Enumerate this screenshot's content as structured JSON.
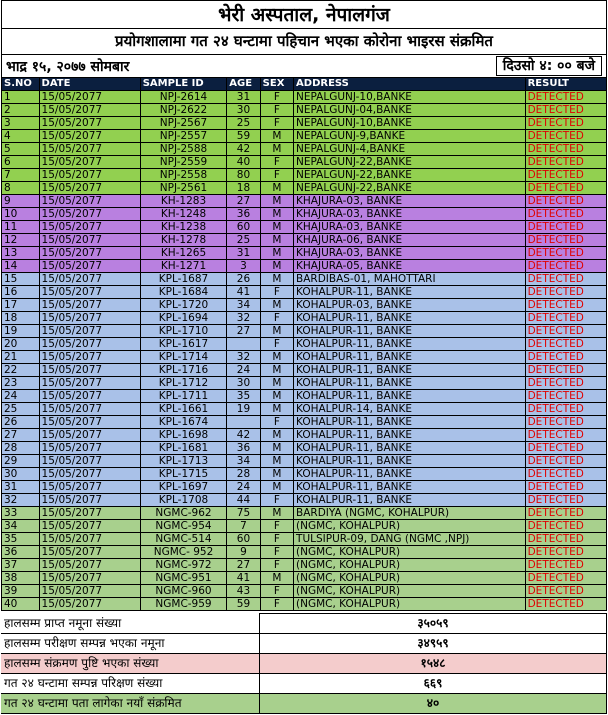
{
  "title": "भेरी अस्पताल, नेपालगंज",
  "subtitle": "प्रयोगशालामा गत २४ घन्टामा पहिचान भएका कोरोना भाइरस संक्रमित",
  "date_left": "भाद्र १५, २०७७ सोमबार",
  "date_right": "दिउसो ४: ००  बजे",
  "headers": [
    "S.NO",
    "DATE",
    "SAMPLE ID",
    "AGE",
    "SEX",
    "ADDRESS",
    "RESULT"
  ],
  "rows": [
    [
      "1",
      "15/05/2077",
      "NPJ-2614",
      "31",
      "F",
      "NEPALGUNJ-10,BANKE",
      "DETECTED",
      "g"
    ],
    [
      "2",
      "15/05/2077",
      "NPJ-2622",
      "30",
      "F",
      "NEPALGUNJ-04,BANKE",
      "DETECTED",
      "g"
    ],
    [
      "3",
      "15/05/2077",
      "NPJ-2567",
      "25",
      "F",
      "NEPALGUNJ-10,BANKE",
      "DETECTED",
      "g"
    ],
    [
      "4",
      "15/05/2077",
      "NPJ-2557",
      "59",
      "M",
      "NEPALGUNJ-9,BANKE",
      "DETECTED",
      "g"
    ],
    [
      "5",
      "15/05/2077",
      "NPJ-2588",
      "42",
      "M",
      "NEPALGUNJ-4,BANKE",
      "DETECTED",
      "g"
    ],
    [
      "6",
      "15/05/2077",
      "NPJ-2559",
      "40",
      "F",
      "NEPALGUNJ-22,BANKE",
      "DETECTED",
      "g"
    ],
    [
      "7",
      "15/05/2077",
      "NPJ-2558",
      "80",
      "F",
      "NEPALGUNJ-22,BANKE",
      "DETECTED",
      "g"
    ],
    [
      "8",
      "15/05/2077",
      "NPJ-2561",
      "18",
      "M",
      "NEPALGUNJ-22,BANKE",
      "DETECTED",
      "g"
    ],
    [
      "9",
      "15/05/2077",
      "KH-1283",
      "27",
      "M",
      "KHAJURA-03, BANKE",
      "DETECTED",
      "p"
    ],
    [
      "10",
      "15/05/2077",
      "KH-1248",
      "36",
      "M",
      "KHAJURA-03, BANKE",
      "DETECTED",
      "p"
    ],
    [
      "11",
      "15/05/2077",
      "KH-1238",
      "60",
      "M",
      "KHAJURA-03, BANKE",
      "DETECTED",
      "p"
    ],
    [
      "12",
      "15/05/2077",
      "KH-1278",
      "25",
      "M",
      "KHAJURA-06, BANKE",
      "DETECTED",
      "p"
    ],
    [
      "13",
      "15/05/2077",
      "KH-1265",
      "31",
      "M",
      "KHAJURA-03, BANKE",
      "DETECTED",
      "p"
    ],
    [
      "14",
      "15/05/2077",
      "KH-1271",
      "3",
      "M",
      "KHAJURA-05, BANKE",
      "DETECTED",
      "p"
    ],
    [
      "15",
      "15/05/2077",
      "KPL-1687",
      "26",
      "M",
      "BARDIBAS-01, MAHOTTARI",
      "DETECTED",
      "b"
    ],
    [
      "16",
      "15/05/2077",
      "KPL-1684",
      "41",
      "F",
      "KOHALPUR-11, BANKE",
      "DETECTED",
      "b"
    ],
    [
      "17",
      "15/05/2077",
      "KPL-1720",
      "34",
      "M",
      "KOHALPUR-03, BANKE",
      "DETECTED",
      "b"
    ],
    [
      "18",
      "15/05/2077",
      "KPL-1694",
      "32",
      "F",
      "KOHALPUR-11, BANKE",
      "DETECTED",
      "b"
    ],
    [
      "19",
      "15/05/2077",
      "KPL-1710",
      "27",
      "M",
      "KOHALPUR-11, BANKE",
      "DETECTED",
      "b"
    ],
    [
      "20",
      "15/05/2077",
      "KPL-1617",
      "",
      "F",
      "KOHALPUR-11, BANKE",
      "DETECTED",
      "b"
    ],
    [
      "21",
      "15/05/2077",
      "KPL-1714",
      "32",
      "M",
      "KOHALPUR-11, BANKE",
      "DETECTED",
      "b"
    ],
    [
      "22",
      "15/05/2077",
      "KPL-1716",
      "24",
      "M",
      "KOHALPUR-11, BANKE",
      "DETECTED",
      "b"
    ],
    [
      "23",
      "15/05/2077",
      "KPL-1712",
      "30",
      "M",
      "KOHALPUR-11, BANKE",
      "DETECTED",
      "b"
    ],
    [
      "24",
      "15/05/2077",
      "KPL-1711",
      "35",
      "M",
      "KOHALPUR-11, BANKE",
      "DETECTED",
      "b"
    ],
    [
      "25",
      "15/05/2077",
      "KPL-1661",
      "19",
      "M",
      "KOHALPUR-14, BANKE",
      "DETECTED",
      "b"
    ],
    [
      "26",
      "15/05/2077",
      "KPL-1674",
      "",
      "F",
      "KOHALPUR-11, BANKE",
      "DETECTED",
      "b"
    ],
    [
      "27",
      "15/05/2077",
      "KPL-1698",
      "42",
      "M",
      "KOHALPUR-11, BANKE",
      "DETECTED",
      "b"
    ],
    [
      "28",
      "15/05/2077",
      "KPL-1681",
      "36",
      "M",
      "KOHALPUR-11, BANKE",
      "DETECTED",
      "b"
    ],
    [
      "29",
      "15/05/2077",
      "KPL-1713",
      "34",
      "M",
      "KOHALPUR-11, BANKE",
      "DETECTED",
      "b"
    ],
    [
      "30",
      "15/05/2077",
      "KPL-1715",
      "28",
      "M",
      "KOHALPUR-11, BANKE",
      "DETECTED",
      "b"
    ],
    [
      "31",
      "15/05/2077",
      "KPL-1697",
      "24",
      "M",
      "KOHALPUR-11, BANKE",
      "DETECTED",
      "b"
    ],
    [
      "32",
      "15/05/2077",
      "KPL-1708",
      "44",
      "F",
      "KOHALPUR-11, BANKE",
      "DETECTED",
      "b"
    ],
    [
      "33",
      "15/05/2077",
      "NGMC-962",
      "75",
      "M",
      "BARDIYA (NGMC, KOHALPUR)",
      "DETECTED",
      "g2"
    ],
    [
      "34",
      "15/05/2077",
      "NGMC-954",
      "7",
      "F",
      "(NGMC, KOHALPUR)",
      "DETECTED",
      "g2"
    ],
    [
      "35",
      "15/05/2077",
      "NGMC-514",
      "60",
      "F",
      "TULSIPUR-09, DANG (NGMC ,NPJ)",
      "DETECTED",
      "g2"
    ],
    [
      "36",
      "15/05/2077",
      "NGMC- 952",
      "9",
      "F",
      "(NGMC, KOHALPUR)",
      "DETECTED",
      "g2"
    ],
    [
      "37",
      "15/05/2077",
      "NGMC-972",
      "27",
      "F",
      "(NGMC, KOHALPUR)",
      "DETECTED",
      "g2"
    ],
    [
      "38",
      "15/05/2077",
      "NGMC-951",
      "41",
      "M",
      "(NGMC, KOHALPUR)",
      "DETECTED",
      "g2"
    ],
    [
      "39",
      "15/05/2077",
      "NGMC-960",
      "43",
      "F",
      "(NGMC, KOHALPUR)",
      "DETECTED",
      "g2"
    ],
    [
      "40",
      "15/05/2077",
      "NGMC-959",
      "59",
      "F",
      "(NGMC, KOHALPUR)",
      "DETECTED",
      "g2"
    ]
  ],
  "summary": [
    {
      "label": "हालसम्म प्राप्त नमूना संख्या",
      "value": "३५०५९",
      "style": ""
    },
    {
      "label": "हालसम्म परीक्षण सम्पन्न भएका नमूना",
      "value": "३४९५९",
      "style": ""
    },
    {
      "label": "हालसम्म संक्रमण पुष्टि भएका संख्या",
      "value": "१५४८",
      "style": "pk"
    },
    {
      "label": "गत २४ घन्टामा सम्पन्न परिक्षण संख्या",
      "value": "६६९",
      "style": ""
    },
    {
      "label": "गत २४ घन्टामा पता लागेका नयाँ संक्रमित",
      "value": "४०",
      "style": "gr"
    }
  ]
}
